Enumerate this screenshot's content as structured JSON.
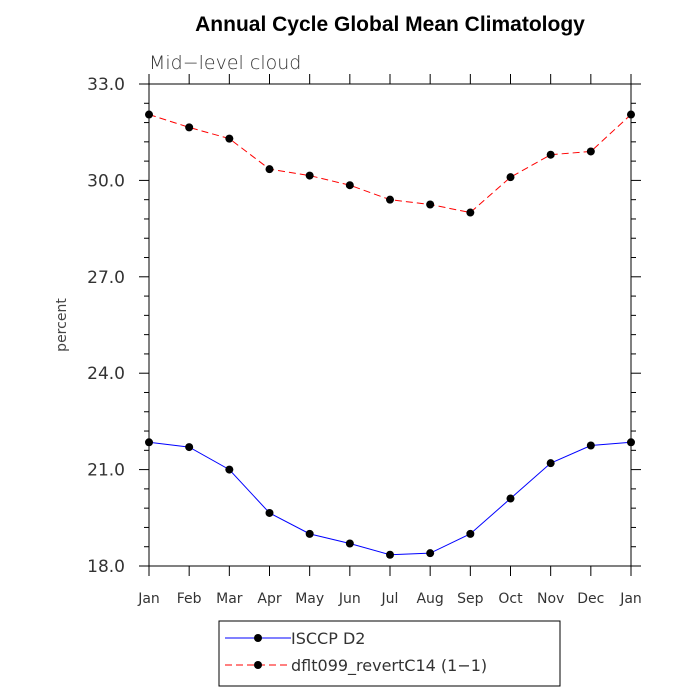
{
  "chart_data": {
    "type": "line",
    "title": "Annual Cycle Global Mean Climatology",
    "subtitle": "Mid−level cloud",
    "xlabel": "",
    "ylabel": "percent",
    "categories": [
      "Jan",
      "Feb",
      "Mar",
      "Apr",
      "May",
      "Jun",
      "Jul",
      "Aug",
      "Sep",
      "Oct",
      "Nov",
      "Dec",
      "Jan"
    ],
    "ylim": [
      18.0,
      33.0
    ],
    "yticks": [
      18.0,
      21.0,
      24.0,
      27.0,
      30.0,
      33.0
    ],
    "ytick_labels": [
      "18.0",
      "21.0",
      "24.0",
      "27.0",
      "30.0",
      "33.0"
    ],
    "legend_position": "bottom-center",
    "grid": false,
    "series": [
      {
        "name": "ISCCP D2",
        "color": "#0000ff",
        "dash": "solid",
        "marker": "filled-circle",
        "values": [
          21.85,
          21.7,
          21.0,
          19.65,
          19.0,
          18.7,
          18.35,
          18.4,
          19.0,
          20.1,
          21.2,
          21.75,
          21.85
        ]
      },
      {
        "name": "dflt099_revertC14 (1−1)",
        "color": "#ff0000",
        "dash": "dashed",
        "marker": "filled-circle",
        "values": [
          32.05,
          31.65,
          31.3,
          30.35,
          30.15,
          29.85,
          29.4,
          29.25,
          29.0,
          30.1,
          30.8,
          30.9,
          32.05
        ]
      }
    ]
  }
}
